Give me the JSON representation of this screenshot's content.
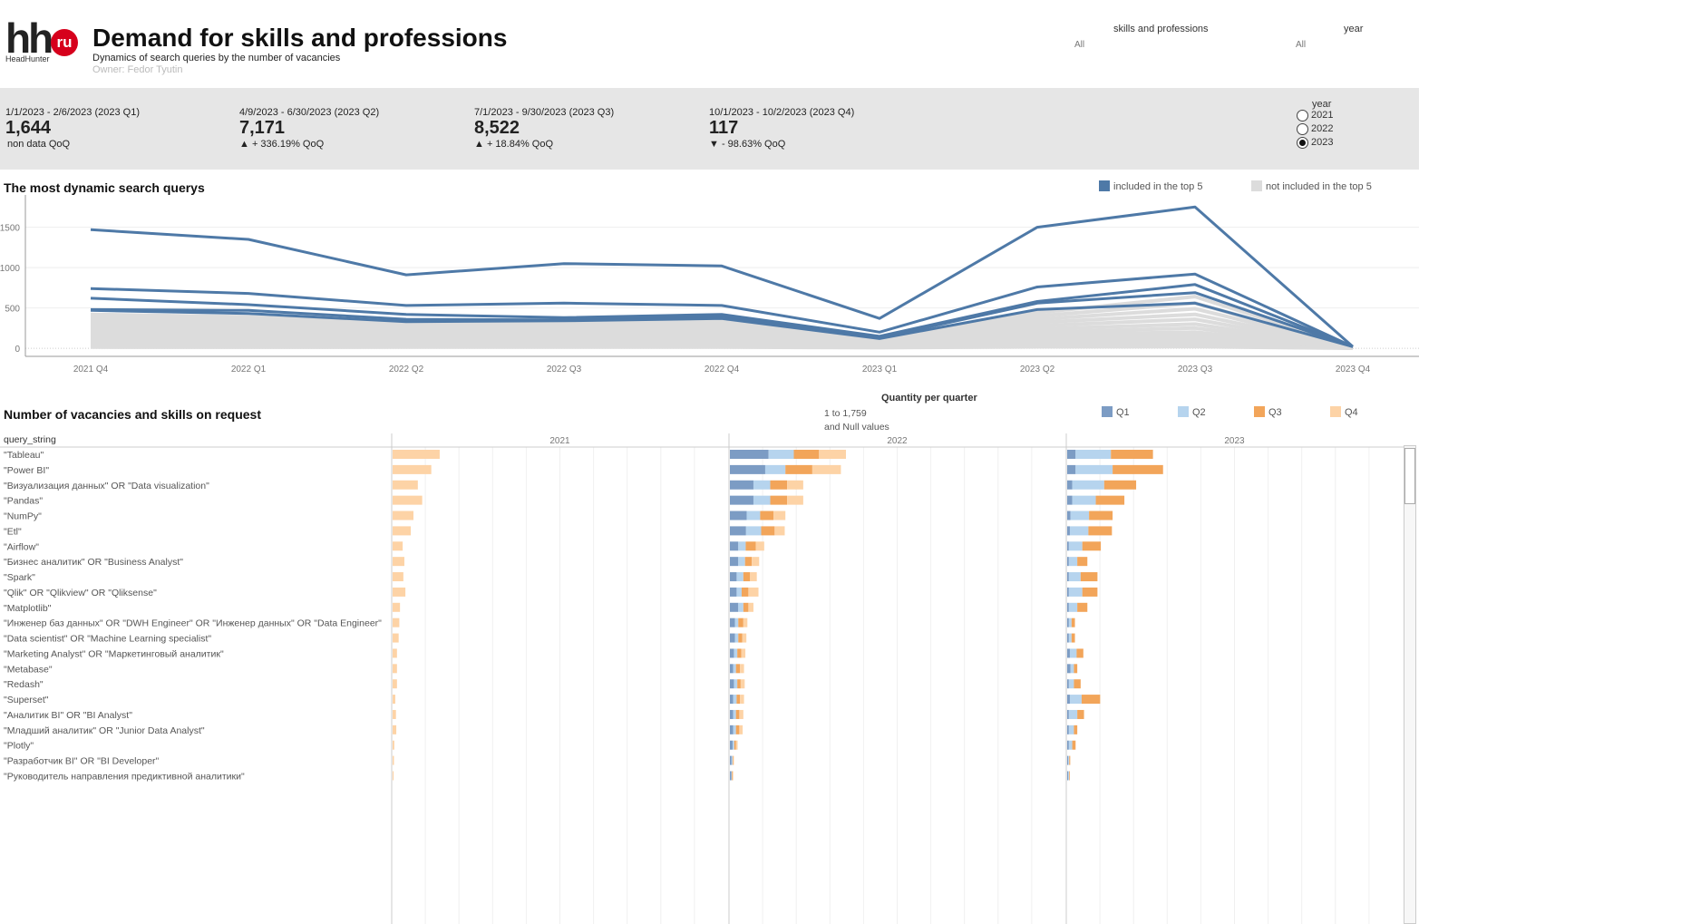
{
  "header": {
    "logo_text": "hh",
    "logo_badge": "ru",
    "logo_sub": "HeadHunter",
    "title": "Demand for skills and professions",
    "subtitle": "Dynamics of search queries by the number of vacancies",
    "owner": "Owner: Fedor Tyutin"
  },
  "filters": [
    {
      "label": "skills and professions",
      "value": "All"
    },
    {
      "label": "year",
      "value": "All"
    }
  ],
  "kpis": [
    {
      "period": "1/1/2023 - 2/6/2023 (2023 Q1)",
      "value": "1,644",
      "delta": "non data QoQ"
    },
    {
      "period": "4/9/2023 - 6/30/2023 (2023 Q2)",
      "value": "7,171",
      "delta": "▲ + 336.19% QoQ"
    },
    {
      "period": "7/1/2023 - 9/30/2023 (2023 Q3)",
      "value": "8,522",
      "delta": "▲ + 18.84% QoQ"
    },
    {
      "period": "10/1/2023 - 10/2/2023 (2023 Q4)",
      "value": "117",
      "delta": "▼ - 98.63% QoQ"
    }
  ],
  "year_selector": {
    "label": "year",
    "options": [
      "2021",
      "2022",
      "2023"
    ],
    "selected": "2023"
  },
  "line_section": {
    "title": "The most dynamic search querys",
    "legend": [
      {
        "label": "included in the top 5",
        "color": "#4e79a7"
      },
      {
        "label": "not included in the top 5",
        "color": "#dcdcdc"
      }
    ]
  },
  "bar_section": {
    "title": "Number of vacancies and skills on request",
    "legend_title": "Quantity per quarter",
    "legend": [
      {
        "label": "Q1",
        "color": "#7c9cc4"
      },
      {
        "label": "Q2",
        "color": "#b6d4ee"
      },
      {
        "label": "Q3",
        "color": "#f2a55a"
      },
      {
        "label": "Q4",
        "color": "#fdd3a6"
      }
    ],
    "size_note_1": "1 to 1,759",
    "size_note_2": "and Null values",
    "row_header": "query_string",
    "year_headers": [
      "2021",
      "2022",
      "2023"
    ]
  },
  "chart_data": [
    {
      "type": "line",
      "title": "The most dynamic search querys",
      "x": [
        "2021 Q4",
        "2022 Q1",
        "2022 Q2",
        "2022 Q3",
        "2022 Q4",
        "2023 Q1",
        "2023 Q2",
        "2023 Q3",
        "2023 Q4"
      ],
      "yticks": [
        0,
        500,
        1000,
        1500
      ],
      "ylim": [
        -100,
        1900
      ],
      "series_top5": [
        {
          "values": [
            1470,
            1350,
            910,
            1050,
            1020,
            370,
            1500,
            1750,
            20
          ]
        },
        {
          "values": [
            740,
            680,
            530,
            560,
            530,
            200,
            760,
            920,
            20
          ]
        },
        {
          "values": [
            620,
            540,
            420,
            380,
            420,
            150,
            580,
            790,
            20
          ]
        },
        {
          "values": [
            480,
            470,
            360,
            350,
            400,
            130,
            560,
            690,
            20
          ]
        },
        {
          "values": [
            470,
            430,
            330,
            340,
            370,
            120,
            480,
            560,
            20
          ]
        }
      ],
      "series_other": [
        {
          "values": [
            420,
            390,
            300,
            330,
            330,
            110,
            440,
            640,
            15
          ]
        },
        {
          "values": [
            380,
            360,
            280,
            300,
            300,
            100,
            400,
            560,
            15
          ]
        },
        {
          "values": [
            340,
            320,
            250,
            270,
            270,
            90,
            360,
            490,
            12
          ]
        },
        {
          "values": [
            300,
            280,
            220,
            240,
            240,
            80,
            320,
            420,
            12
          ]
        },
        {
          "values": [
            260,
            250,
            200,
            210,
            210,
            70,
            280,
            360,
            10
          ]
        },
        {
          "values": [
            220,
            210,
            170,
            180,
            180,
            60,
            240,
            300,
            10
          ]
        },
        {
          "values": [
            190,
            180,
            150,
            160,
            160,
            50,
            200,
            250,
            8
          ]
        },
        {
          "values": [
            160,
            150,
            130,
            140,
            140,
            45,
            170,
            200,
            8
          ]
        },
        {
          "values": [
            130,
            120,
            110,
            110,
            110,
            40,
            140,
            160,
            6
          ]
        },
        {
          "values": [
            100,
            95,
            85,
            90,
            90,
            30,
            110,
            120,
            5
          ]
        },
        {
          "values": [
            75,
            70,
            65,
            70,
            70,
            25,
            80,
            90,
            4
          ]
        },
        {
          "values": [
            50,
            45,
            45,
            50,
            50,
            20,
            55,
            60,
            3
          ]
        },
        {
          "values": [
            30,
            28,
            30,
            30,
            30,
            12,
            35,
            40,
            2
          ]
        },
        {
          "values": [
            15,
            14,
            15,
            15,
            15,
            8,
            18,
            20,
            1
          ]
        }
      ]
    },
    {
      "type": "bar",
      "title": "Number of vacancies and skills on request",
      "stacked": true,
      "quarters": [
        "Q1",
        "Q2",
        "Q3",
        "Q4"
      ],
      "years": [
        "2021",
        "2022",
        "2023"
      ],
      "xlim": [
        0,
        1000
      ],
      "categories": [
        "\"Tableau\"",
        "\"Power BI\"",
        "\"Визуализация данных\" OR \"Data visualization\"",
        "\"Pandas\"",
        "\"NumPy\"",
        "\"Etl\"",
        "\"Airflow\"",
        "\"Бизнес аналитик\" OR \"Business Analyst\"",
        "\"Spark\"",
        "\"Qlik\" OR \"Qlikview\" OR \"Qliksense\"",
        "\"Matplotlib\"",
        "\"Инженер баз данных\" OR \"DWH Engineer\" OR \"Инженер данных\" OR \"Data Engineer\"",
        "\"Data scientist\" OR \"Machine Learning specialist\"",
        "\"Marketing Analyst\" OR \"Маркетинговый аналитик\"",
        "\"Metabase\"",
        "\"Redash\"",
        "\"Superset\"",
        "\"Аналитик BI\" OR \"BI Analyst\"",
        "\"Младший аналитик\" OR \"Junior Data Analyst\"",
        "\"Plotly\"",
        "\"Разработчик BI\" OR \"BI Developer\"",
        "\"Руководитель направления предиктивной аналитики\""
      ],
      "values": {
        "2021": [
          [
            0,
            0,
            0,
            140
          ],
          [
            0,
            0,
            0,
            115
          ],
          [
            0,
            0,
            0,
            75
          ],
          [
            0,
            0,
            0,
            88
          ],
          [
            0,
            0,
            0,
            62
          ],
          [
            0,
            0,
            0,
            54
          ],
          [
            0,
            0,
            0,
            30
          ],
          [
            0,
            0,
            0,
            35
          ],
          [
            0,
            0,
            0,
            32
          ],
          [
            0,
            0,
            0,
            38
          ],
          [
            0,
            0,
            0,
            22
          ],
          [
            0,
            0,
            0,
            20
          ],
          [
            0,
            0,
            0,
            18
          ],
          [
            0,
            0,
            0,
            13
          ],
          [
            0,
            0,
            0,
            13
          ],
          [
            0,
            0,
            0,
            13
          ],
          [
            0,
            0,
            0,
            8
          ],
          [
            0,
            0,
            0,
            10
          ],
          [
            0,
            0,
            0,
            11
          ],
          [
            0,
            0,
            0,
            5
          ],
          [
            0,
            0,
            0,
            4
          ],
          [
            0,
            0,
            0,
            3
          ]
        ],
        "2022": [
          [
            115,
            75,
            75,
            80
          ],
          [
            105,
            60,
            80,
            85
          ],
          [
            70,
            50,
            50,
            48
          ],
          [
            70,
            50,
            50,
            48
          ],
          [
            50,
            40,
            40,
            35
          ],
          [
            48,
            45,
            40,
            30
          ],
          [
            25,
            22,
            30,
            25
          ],
          [
            25,
            20,
            20,
            22
          ],
          [
            20,
            20,
            20,
            20
          ],
          [
            20,
            15,
            20,
            30
          ],
          [
            25,
            15,
            15,
            15
          ],
          [
            15,
            10,
            15,
            12
          ],
          [
            15,
            10,
            12,
            12
          ],
          [
            12,
            10,
            12,
            12
          ],
          [
            10,
            8,
            12,
            12
          ],
          [
            12,
            10,
            10,
            12
          ],
          [
            10,
            10,
            10,
            12
          ],
          [
            10,
            8,
            10,
            12
          ],
          [
            10,
            8,
            10,
            10
          ],
          [
            8,
            5,
            5,
            5
          ],
          [
            5,
            3,
            2,
            2
          ],
          [
            4,
            2,
            2,
            2
          ]
        ],
        "2023": [
          [
            25,
            105,
            125,
            0
          ],
          [
            25,
            110,
            150,
            0
          ],
          [
            15,
            95,
            95,
            0
          ],
          [
            15,
            70,
            85,
            0
          ],
          [
            10,
            55,
            70,
            0
          ],
          [
            8,
            55,
            70,
            0
          ],
          [
            5,
            40,
            55,
            0
          ],
          [
            5,
            25,
            30,
            0
          ],
          [
            5,
            35,
            50,
            0
          ],
          [
            5,
            40,
            45,
            0
          ],
          [
            5,
            25,
            30,
            0
          ],
          [
            5,
            8,
            10,
            0
          ],
          [
            5,
            8,
            10,
            0
          ],
          [
            8,
            20,
            20,
            0
          ],
          [
            10,
            10,
            10,
            0
          ],
          [
            5,
            15,
            20,
            0
          ],
          [
            8,
            35,
            55,
            0
          ],
          [
            5,
            25,
            20,
            0
          ],
          [
            5,
            15,
            10,
            0
          ],
          [
            5,
            10,
            10,
            0
          ],
          [
            3,
            3,
            3,
            0
          ],
          [
            3,
            3,
            2,
            0
          ]
        ]
      }
    }
  ]
}
